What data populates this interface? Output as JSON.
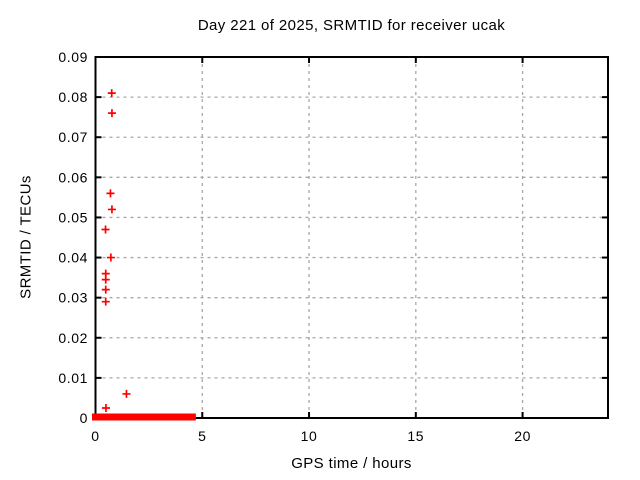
{
  "chart_data": {
    "type": "scatter",
    "title": "Day 221 of 2025, SRMTID for receiver ucak",
    "xlabel": "GPS time / hours",
    "ylabel": "SRMTID / TECUs",
    "xlim": [
      0,
      24
    ],
    "ylim": [
      0,
      0.09
    ],
    "xticks": [
      0,
      5,
      10,
      15,
      20
    ],
    "yticks": [
      0,
      0.01,
      0.02,
      0.03,
      0.04,
      0.05,
      0.06,
      0.07,
      0.08,
      0.09
    ],
    "grid": true,
    "legend": "none",
    "marker": "plus",
    "series": [
      {
        "name": "SRMTID",
        "color": "#ff0000",
        "points": [
          [
            0.47,
            0.047
          ],
          [
            0.48,
            0.036
          ],
          [
            0.48,
            0.0345
          ],
          [
            0.48,
            0.032
          ],
          [
            0.48,
            0.029
          ],
          [
            0.49,
            0.0025
          ],
          [
            0.7,
            0.056
          ],
          [
            0.72,
            0.04
          ],
          [
            0.76,
            0.081
          ],
          [
            0.77,
            0.076
          ],
          [
            0.77,
            0.052
          ],
          [
            1.45,
            0.006
          ]
        ]
      }
    ],
    "zero_band": {
      "x_start": 0.0,
      "x_end": 4.7,
      "y": 0.0005
    },
    "colors": {
      "marker": "#ff0000",
      "grid": "#a8a8a8",
      "border": "#000000",
      "background": "#ffffff",
      "text": "#000000"
    }
  }
}
